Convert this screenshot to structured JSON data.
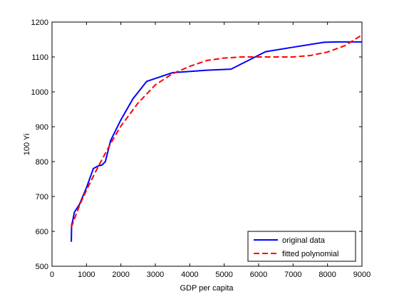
{
  "chart_data": {
    "type": "line",
    "title": "",
    "xlabel": "GDP per capita",
    "ylabel": "100 Yi",
    "xlim": [
      0,
      9000
    ],
    "ylim": [
      500,
      1200
    ],
    "xticks": [
      0,
      1000,
      2000,
      3000,
      4000,
      5000,
      6000,
      7000,
      8000,
      9000
    ],
    "xtick_labels": [
      "0",
      "1000",
      "2000",
      "3000",
      "4000",
      "5000",
      "6000",
      "7000",
      "8000",
      "9000"
    ],
    "yticks": [
      500,
      600,
      700,
      800,
      900,
      1000,
      1100,
      1200
    ],
    "ytick_labels": [
      "500",
      "600",
      "700",
      "800",
      "900",
      "1000",
      "1100",
      "1200"
    ],
    "grid": false,
    "legend_position": "bottom-right",
    "series": [
      {
        "name": "original data",
        "color": "#0000ff",
        "style": "solid",
        "x": [
          560,
          570,
          600,
          650,
          800,
          1000,
          1200,
          1350,
          1450,
          1550,
          1700,
          2000,
          2350,
          2750,
          3500,
          4500,
          5200,
          6200,
          7000,
          7900,
          8300,
          9000
        ],
        "y": [
          570,
          618,
          630,
          655,
          678,
          725,
          780,
          788,
          790,
          800,
          860,
          920,
          980,
          1030,
          1055,
          1062,
          1065,
          1115,
          1128,
          1142,
          1143,
          1143
        ]
      },
      {
        "name": "fitted polynomial",
        "color": "#ff0000",
        "style": "dashed",
        "x": [
          560,
          800,
          1000,
          1250,
          1500,
          1750,
          2000,
          2500,
          3000,
          3500,
          4000,
          4500,
          5000,
          5500,
          6000,
          6500,
          7000,
          7500,
          8000,
          8500,
          9000
        ],
        "y": [
          612,
          675,
          718,
          768,
          815,
          860,
          902,
          968,
          1020,
          1052,
          1073,
          1090,
          1097,
          1100,
          1100,
          1100,
          1100,
          1104,
          1114,
          1132,
          1163
        ]
      }
    ]
  }
}
